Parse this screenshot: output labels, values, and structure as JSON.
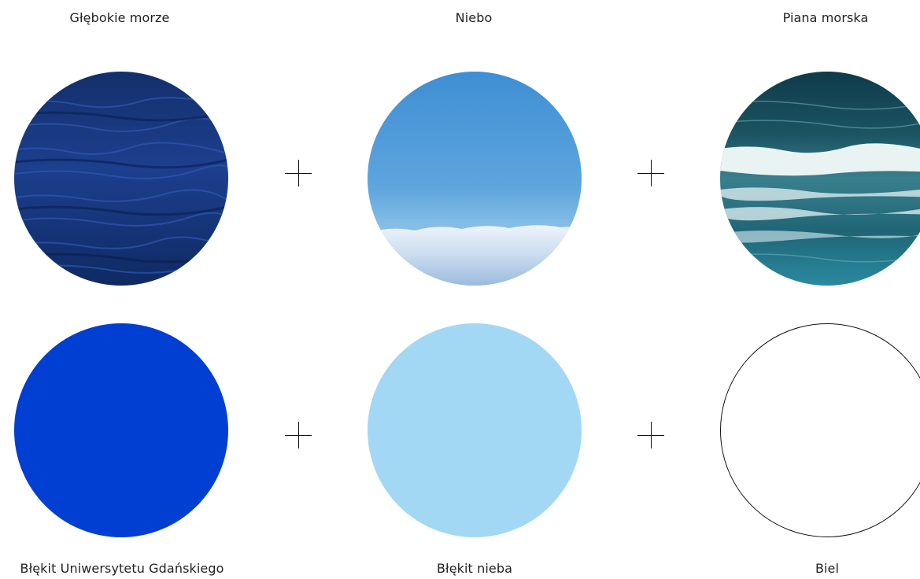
{
  "top_labels": {
    "deep_sea": "Głębokie morze",
    "sky": "Niebo",
    "sea_foam": "Piana morska"
  },
  "bottom_labels": {
    "ug_blue": "Błękit Uniwersytetu Gdańskiego",
    "sky_blue": "Błękit nieba",
    "white": "Biel"
  },
  "colors": {
    "ug_blue": "#003FD1",
    "sky_blue": "#A3D8F5",
    "white": "#FFFFFF",
    "outline": "#111111"
  },
  "operators": [
    "+",
    "+",
    "+",
    "+"
  ],
  "icons": {
    "operator": "plus-icon"
  }
}
